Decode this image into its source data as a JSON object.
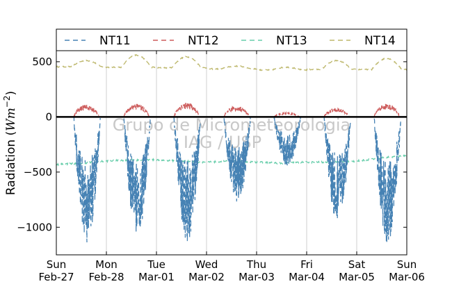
{
  "chart_data": {
    "type": "line",
    "ylabel": "Radiation (Wm⁻²)",
    "ylabel_main": "Radiation (",
    "ylabel_unit": "Wm",
    "ylabel_exp": "−2",
    "ylabel_close": ")",
    "ylim": [
      -1250,
      600
    ],
    "xlim_days": [
      0,
      7
    ],
    "yticks": [
      500,
      0,
      -500,
      -1000
    ],
    "ytick_labels": [
      "500",
      "0",
      "−500",
      "−1000"
    ],
    "xtick_labels": [
      [
        "Sun",
        "Feb-27"
      ],
      [
        "Mon",
        "Feb-28"
      ],
      [
        "Tue",
        "Mar-01"
      ],
      [
        "Wed",
        "Mar-02"
      ],
      [
        "Thu",
        "Mar-03"
      ],
      [
        "Fri",
        "Mar-04"
      ],
      [
        "Sat",
        "Mar-05"
      ],
      [
        "Sun",
        "Mar-06"
      ]
    ],
    "grid": "vertical",
    "legend_position": "top",
    "zero_line": true,
    "watermark": [
      "Grupo de Micrometeorologia",
      "IAG / USP"
    ],
    "series": [
      {
        "name": "NT11",
        "color": "#4682b4",
        "daily_min": [
          -1140,
          -1090,
          -1130,
          -790,
          -450,
          -960,
          -1160
        ],
        "day_span": [
          0.35,
          0.88
        ]
      },
      {
        "name": "NT12",
        "color": "#cd5c5c",
        "daily_max": [
          110,
          120,
          130,
          100,
          40,
          80,
          120
        ],
        "day_span": [
          0.35,
          0.85
        ]
      },
      {
        "name": "NT13",
        "color": "#66cdaa",
        "x": [
          0,
          0.5,
          1,
          1.5,
          2,
          2.5,
          3,
          3.5,
          4,
          4.5,
          5,
          5.5,
          6,
          6.5,
          7
        ],
        "y": [
          -430,
          -420,
          -400,
          -390,
          -390,
          -400,
          -410,
          -400,
          -410,
          -420,
          -410,
          -410,
          -400,
          -370,
          -350
        ]
      },
      {
        "name": "NT14",
        "color": "#bdb76b",
        "baseline": [
          455,
          450,
          445,
          435,
          425,
          430,
          430
        ],
        "daily_peak": [
          510,
          560,
          545,
          460,
          450,
          510,
          530
        ]
      }
    ]
  }
}
